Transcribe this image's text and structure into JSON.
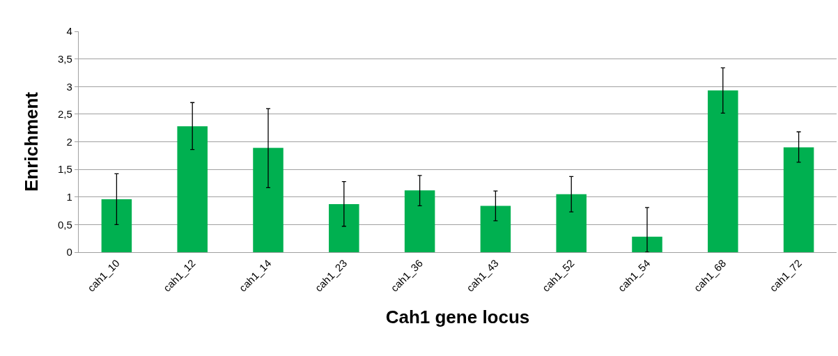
{
  "chart_data": {
    "type": "bar",
    "xlabel": "Cah1 gene locus",
    "ylabel": "Enrichment",
    "categories": [
      "cah1_10",
      "cah1_12",
      "cah1_14",
      "cah1_23",
      "cah1_36",
      "cah1_43",
      "cah1_52",
      "cah1_54",
      "cah1_68",
      "cah1_72"
    ],
    "values": [
      0.96,
      2.28,
      1.89,
      0.87,
      1.12,
      0.84,
      1.05,
      0.28,
      2.93,
      1.9
    ],
    "errors": [
      [
        0.5,
        1.42
      ],
      [
        1.86,
        2.71
      ],
      [
        1.17,
        2.6
      ],
      [
        0.47,
        1.28
      ],
      [
        0.84,
        1.39
      ],
      [
        0.57,
        1.11
      ],
      [
        0.73,
        1.37
      ],
      [
        0,
        0.81
      ],
      [
        2.52,
        3.34
      ],
      [
        1.63,
        2.18
      ]
    ],
    "color": "#00b050",
    "ylim": [
      0,
      4
    ],
    "yticks": [
      0,
      {
        "value": 0.5,
        "label": "0,5"
      },
      1,
      {
        "value": 1.5,
        "label": "1,5"
      },
      2,
      {
        "value": 2.5,
        "label": "2,5"
      },
      3,
      {
        "value": 3.5,
        "label": "3,5"
      },
      4
    ],
    "grid": "y"
  }
}
